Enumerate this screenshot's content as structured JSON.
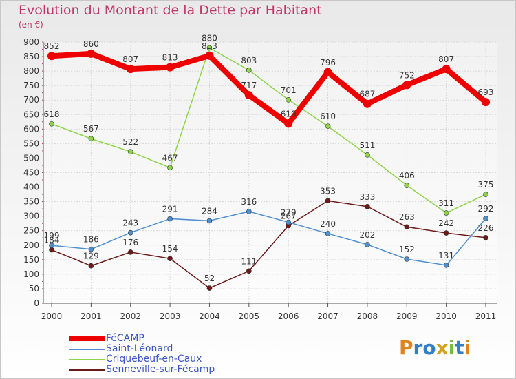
{
  "chart_data": {
    "type": "line",
    "title": "Evolution du Montant de la Dette par Habitant",
    "unit": "(en €)",
    "xlabel": "",
    "ylabel": "",
    "x": [
      "2000",
      "2001",
      "2002",
      "2003",
      "2004",
      "2005",
      "2006",
      "2007",
      "2008",
      "2009",
      "2010",
      "2011"
    ],
    "ylim": [
      0,
      900
    ],
    "yticks": [
      0,
      50,
      100,
      150,
      200,
      250,
      300,
      350,
      400,
      450,
      500,
      550,
      600,
      650,
      700,
      750,
      800,
      850,
      900
    ],
    "grid": true,
    "legend_position": "bottom-left",
    "series": [
      {
        "name": "Senneville-sur-Fécamp",
        "color": "#6b1a1a",
        "values": [
          184,
          129,
          176,
          154,
          52,
          111,
          267,
          353,
          333,
          263,
          242,
          226
        ],
        "labels": [
          "184",
          "129",
          "176",
          "154",
          "52",
          "111",
          "267",
          "353",
          "333",
          "263",
          "242",
          "226"
        ]
      },
      {
        "name": "Saint-Léonard",
        "color": "#4f8fd0",
        "values": [
          199,
          186,
          243,
          291,
          284,
          316,
          279,
          240,
          202,
          152,
          131,
          292
        ],
        "labels": [
          "199",
          "186",
          "243",
          "291",
          "284",
          "316",
          "279",
          "240",
          "202",
          "152",
          "131",
          "292"
        ]
      },
      {
        "name": "Criquebeuf-en-Caux",
        "color": "#8ed44a",
        "values": [
          618,
          567,
          522,
          467,
          880,
          803,
          701,
          610,
          511,
          406,
          311,
          375
        ],
        "labels": [
          "618",
          "567",
          "522",
          "467",
          "880",
          "803",
          "701",
          "610",
          "511",
          "406",
          "311",
          "375"
        ]
      },
      {
        "name": "FéCAMP",
        "color": "#ee0000",
        "values": [
          852,
          860,
          807,
          813,
          853,
          717,
          619,
          796,
          687,
          752,
          807,
          693
        ],
        "labels": [
          "852",
          "860",
          "807",
          "813",
          "853",
          "717",
          "619",
          "796",
          "687",
          "752",
          "807",
          "693"
        ]
      }
    ]
  },
  "legend": [
    {
      "label": "FéCAMP",
      "color": "#ee0000"
    },
    {
      "label": "Saint-Léonard",
      "color": "#4f8fd0"
    },
    {
      "label": "Criquebeuf-en-Caux",
      "color": "#8ed44a"
    },
    {
      "label": "Senneville-sur-Fécamp",
      "color": "#6b1a1a"
    }
  ],
  "logo": {
    "text": "Proxiti"
  }
}
